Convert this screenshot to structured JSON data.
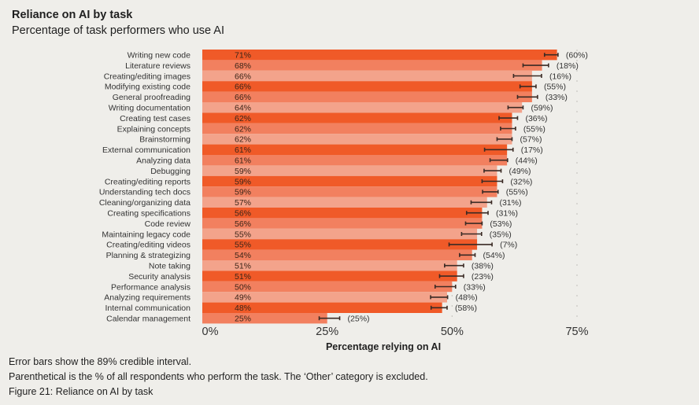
{
  "title": "Reliance on AI by task",
  "subtitle": "Percentage of task performers who use AI",
  "chart_data": {
    "type": "bar",
    "orientation": "horizontal",
    "title": "Reliance on AI by task",
    "subtitle": "Percentage of task performers who use AI",
    "xlabel": "Percentage relying on AI",
    "ylabel": "",
    "xlim": [
      0,
      75
    ],
    "xticks": [
      "0%",
      "25%",
      "50%",
      "75%"
    ],
    "xtick_values": [
      0,
      25,
      50,
      75
    ],
    "grid": "dotted vertical at 50% and 75%",
    "colors": [
      "#f05a28",
      "#f2805f",
      "#f3a38b"
    ],
    "error_bar_color": "#3a2a24",
    "categories": [
      "Writing new code",
      "Literature reviews",
      "Creating/editing images",
      "Modifying existing code",
      "General proofreading",
      "Writing documentation",
      "Creating test cases",
      "Explaining concepts",
      "Brainstorming",
      "External communication",
      "Analyzing data",
      "Debugging",
      "Creating/editing reports",
      "Understanding tech docs",
      "Cleaning/organizing data",
      "Creating specifications",
      "Code review",
      "Maintaining legacy code",
      "Creating/editing videos",
      "Planning & strategizing",
      "Note taking",
      "Security analysis",
      "Performance analysis",
      "Analyzing requirements",
      "Internal communication",
      "Calendar management"
    ],
    "values": [
      71,
      68,
      66,
      66,
      66,
      64,
      62,
      62,
      62,
      61,
      61,
      59,
      59,
      59,
      57,
      56,
      56,
      55,
      55,
      54,
      51,
      51,
      50,
      49,
      48,
      25
    ],
    "value_labels": [
      "71%",
      "68%",
      "66%",
      "66%",
      "66%",
      "64%",
      "62%",
      "62%",
      "62%",
      "61%",
      "61%",
      "59%",
      "59%",
      "59%",
      "57%",
      "56%",
      "56%",
      "55%",
      "55%",
      "54%",
      "51%",
      "51%",
      "50%",
      "49%",
      "48%",
      "25%"
    ],
    "ci_low": [
      68.5,
      64.2,
      62.3,
      63.6,
      63.1,
      61.2,
      59.4,
      59.7,
      59.0,
      56.5,
      57.6,
      56.4,
      56.0,
      56.1,
      53.8,
      52.9,
      52.7,
      51.9,
      49.4,
      51.5,
      48.5,
      47.5,
      46.6,
      45.7,
      45.8,
      23.4
    ],
    "ci_high": [
      71.2,
      69.3,
      67.9,
      66.8,
      67.1,
      64.2,
      63.1,
      62.7,
      62.0,
      62.2,
      61.1,
      59.8,
      60.1,
      59.2,
      57.9,
      57.2,
      56.0,
      55.9,
      58.0,
      54.6,
      52.3,
      52.3,
      50.7,
      49.1,
      49.0,
      27.5
    ],
    "parentheticals": [
      "(60%)",
      "(18%)",
      "(16%)",
      "(55%)",
      "(33%)",
      "(59%)",
      "(36%)",
      "(55%)",
      "(57%)",
      "(17%)",
      "(44%)",
      "(49%)",
      "(32%)",
      "(55%)",
      "(31%)",
      "(31%)",
      "(53%)",
      "(35%)",
      "(7%)",
      "(54%)",
      "(38%)",
      "(23%)",
      "(33%)",
      "(48%)",
      "(58%)",
      "(25%)"
    ]
  },
  "notes": [
    "Error bars show the 89% credible interval.",
    "Parenthetical is the % of all respondents who perform the task. The ‘Other’ category is excluded.",
    "Figure 21: Reliance on AI by task"
  ]
}
